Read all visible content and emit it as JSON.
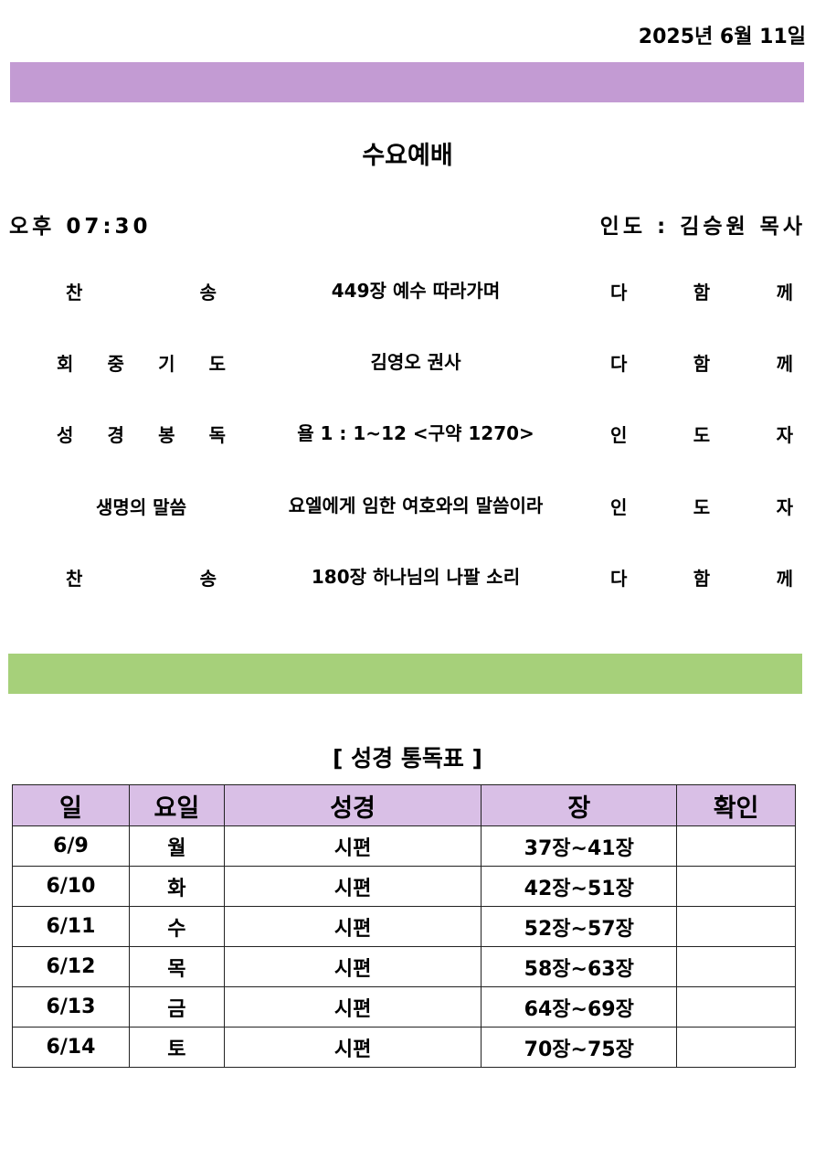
{
  "header": {
    "date": "2025년  6월  11일",
    "title": "수요예배",
    "time": "오후  07:30",
    "leader": "인도 : 김승원 목사"
  },
  "colors": {
    "top_bar": "#c39bd3",
    "middle_bar": "#a6d07a",
    "table_header": "#d9bfe6"
  },
  "order": [
    {
      "label": [
        "찬",
        "송"
      ],
      "content": "449장 예수 따라가며",
      "who": [
        "다",
        "함",
        "께"
      ]
    },
    {
      "label": [
        "회",
        "중",
        "기",
        "도"
      ],
      "content": "김영오 권사",
      "who": [
        "다",
        "함",
        "께"
      ]
    },
    {
      "label": [
        "성",
        "경",
        "봉",
        "독"
      ],
      "content": "욜 1 : 1~12 <구약 1270>",
      "who": [
        "인",
        "도",
        "자"
      ]
    },
    {
      "label": [
        "생명의 말씀"
      ],
      "content": "요엘에게 임한 여호와의 말씀이라",
      "who": [
        "인",
        "도",
        "자"
      ]
    },
    {
      "label": [
        "찬",
        "송"
      ],
      "content": "180장 하나님의 나팔 소리",
      "who": [
        "다",
        "함",
        "께"
      ]
    }
  ],
  "reading": {
    "title": "[ 성경 통독표 ]",
    "headers": [
      "일",
      "요일",
      "성경",
      "장",
      "확인"
    ],
    "rows": [
      [
        "6/9",
        "월",
        "시편",
        "37장~41장",
        ""
      ],
      [
        "6/10",
        "화",
        "시편",
        "42장~51장",
        ""
      ],
      [
        "6/11",
        "수",
        "시편",
        "52장~57장",
        ""
      ],
      [
        "6/12",
        "목",
        "시편",
        "58장~63장",
        ""
      ],
      [
        "6/13",
        "금",
        "시편",
        "64장~69장",
        ""
      ],
      [
        "6/14",
        "토",
        "시편",
        "70장~75장",
        ""
      ]
    ]
  }
}
